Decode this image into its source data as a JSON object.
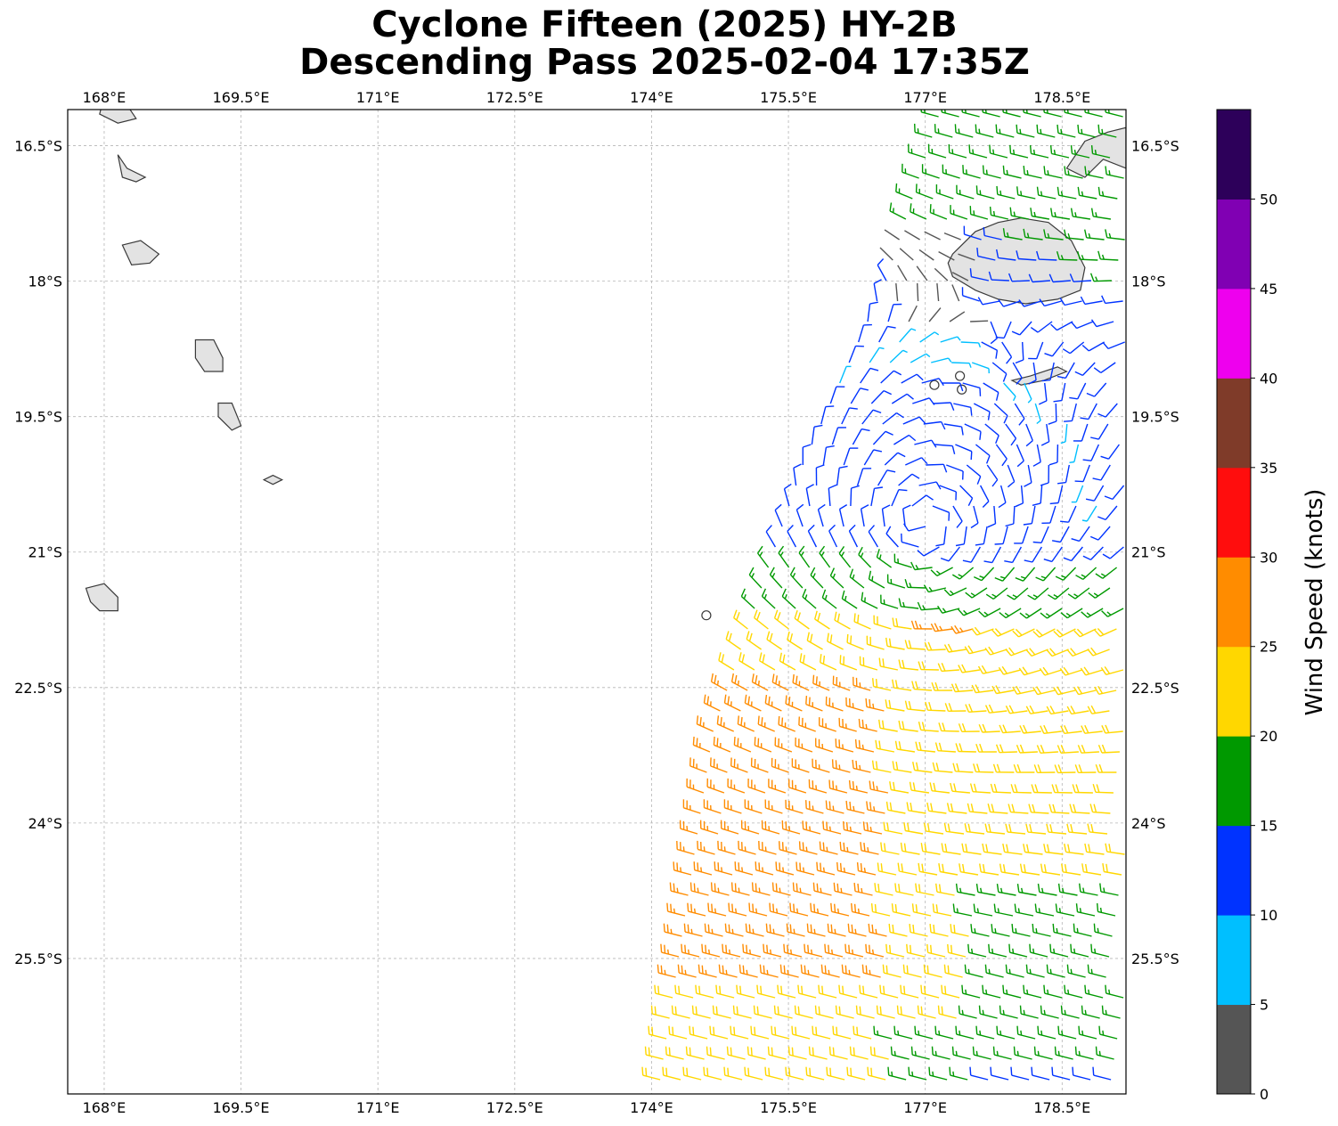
{
  "title": {
    "line1": "Cyclone Fifteen (2025) HY-2B",
    "line2": "Descending Pass 2025-02-04 17:35Z"
  },
  "map": {
    "lon_range": [
      167.6,
      179.2
    ],
    "lat_range": [
      -27.0,
      -16.1
    ],
    "gridlines": true,
    "lon_ticks": [
      {
        "value": 168.0,
        "label": "168°E"
      },
      {
        "value": 169.5,
        "label": "169.5°E"
      },
      {
        "value": 171.0,
        "label": "171°E"
      },
      {
        "value": 172.5,
        "label": "172.5°E"
      },
      {
        "value": 174.0,
        "label": "174°E"
      },
      {
        "value": 175.5,
        "label": "175.5°E"
      },
      {
        "value": 177.0,
        "label": "177°E"
      },
      {
        "value": 178.5,
        "label": "178.5°E"
      }
    ],
    "lat_ticks": [
      {
        "value": -16.5,
        "label": "16.5°S"
      },
      {
        "value": -18.0,
        "label": "18°S"
      },
      {
        "value": -19.5,
        "label": "19.5°S"
      },
      {
        "value": -21.0,
        "label": "21°S"
      },
      {
        "value": -22.5,
        "label": "22.5°S"
      },
      {
        "value": -24.0,
        "label": "24°S"
      },
      {
        "value": -25.5,
        "label": "25.5°S"
      }
    ],
    "cyclone_center": {
      "lon": 177.0,
      "lat": -20.7
    },
    "swath_edges": {
      "west": [
        [
          177.0,
          -16.1
        ],
        [
          176.4,
          -18.0
        ],
        [
          175.5,
          -20.0
        ],
        [
          174.5,
          -23.0
        ],
        [
          173.9,
          -27.0
        ]
      ],
      "east_lon": 179.2
    }
  },
  "colorbar": {
    "label": "Wind Speed (knots)",
    "ticks": [
      "0",
      "5",
      "10",
      "15",
      "20",
      "25",
      "30",
      "35",
      "40",
      "45",
      "50"
    ],
    "bins": [
      {
        "min": 0,
        "max": 5,
        "color": "#555555"
      },
      {
        "min": 5,
        "max": 10,
        "color": "#00bfff"
      },
      {
        "min": 10,
        "max": 15,
        "color": "#0033ff"
      },
      {
        "min": 15,
        "max": 20,
        "color": "#009900"
      },
      {
        "min": 20,
        "max": 25,
        "color": "#ffd700"
      },
      {
        "min": 25,
        "max": 30,
        "color": "#ff8c00"
      },
      {
        "min": 30,
        "max": 35,
        "color": "#ff0d0d"
      },
      {
        "min": 35,
        "max": 40,
        "color": "#7f3b29"
      },
      {
        "min": 40,
        "max": 45,
        "color": "#ee00ee"
      },
      {
        "min": 45,
        "max": 50,
        "color": "#8000b3"
      },
      {
        "min": 50,
        "max": 55,
        "color": "#2d005a"
      }
    ]
  }
}
